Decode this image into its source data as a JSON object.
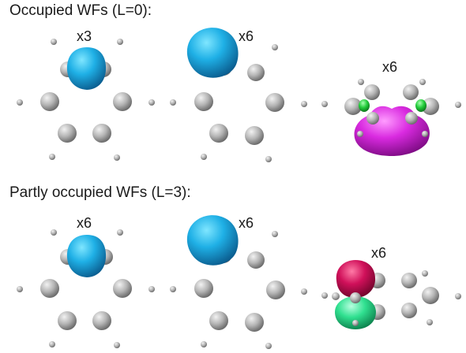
{
  "sections": [
    {
      "title": "Occupied WFs (L=0):",
      "panels": [
        {
          "multiplicity": "x3",
          "orbital": "cyan-lobe-centered"
        },
        {
          "multiplicity": "x6",
          "orbital": "cyan-lobe-tilted"
        },
        {
          "multiplicity": "x6",
          "orbital": "magenta-lobe-with-green"
        }
      ]
    },
    {
      "title": "Partly occupied WFs (L=3):",
      "panels": [
        {
          "multiplicity": "x6",
          "orbital": "cyan-lobe-centered"
        },
        {
          "multiplicity": "x6",
          "orbital": "cyan-lobe-tilted"
        },
        {
          "multiplicity": "x6",
          "orbital": "red-green-dipole"
        }
      ]
    }
  ],
  "colors": {
    "atom": "#b8b8b8",
    "cyan_lobe": "#1fa0d8",
    "magenta_lobe": "#d020d8",
    "green_lobe": "#20d040",
    "red_lobe": "#d01060",
    "mint_lobe": "#30e090"
  }
}
